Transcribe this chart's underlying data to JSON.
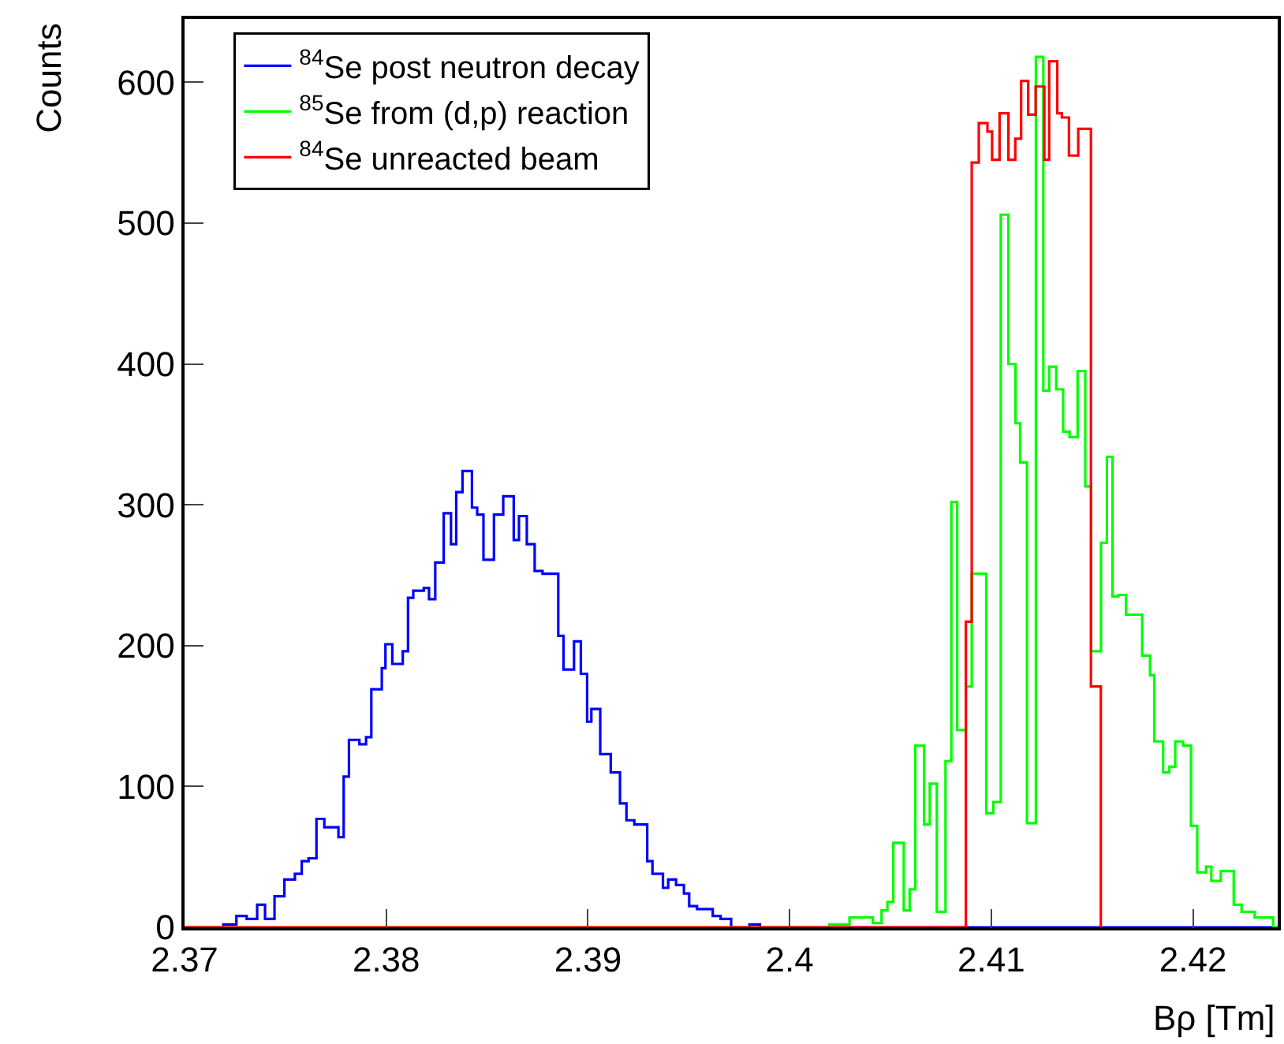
{
  "chart_data": {
    "type": "step",
    "xlabel": "Bρ [Tm]",
    "ylabel": "Counts",
    "xlim": [
      2.37,
      2.4242
    ],
    "xticks": [
      2.37,
      2.38,
      2.39,
      2.4,
      2.41,
      2.42
    ],
    "ylim": [
      0,
      645
    ],
    "yticks": [
      0,
      100,
      200,
      300,
      400,
      500,
      600
    ],
    "legend": "top left",
    "marker": "none",
    "line_style": "solid",
    "series": [
      {
        "name": "$^{84}$Se post neutron decay",
        "color": "#0000ff",
        "x": [
          2.37,
          2.37192,
          2.37257,
          2.37308,
          2.3736,
          2.37399,
          2.37446,
          2.37495,
          2.37547,
          2.37581,
          2.37615,
          2.37654,
          2.37693,
          2.37763,
          2.37789,
          2.37815,
          2.37867,
          2.379,
          2.37926,
          2.37978,
          2.37996,
          2.3803,
          2.38082,
          2.38108,
          2.38134,
          2.38186,
          2.38212,
          2.38243,
          2.38285,
          2.38321,
          2.38347,
          2.38378,
          2.38425,
          2.38451,
          2.38482,
          2.38534,
          2.3858,
          2.38632,
          2.38658,
          2.38697,
          2.38736,
          2.38775,
          2.38853,
          2.38879,
          2.38931,
          2.38965,
          2.38996,
          2.39017,
          2.39061,
          2.39113,
          2.39159,
          2.39191,
          2.3923,
          2.39294,
          2.3932,
          2.39372,
          2.39398,
          2.39437,
          2.39476,
          2.39502,
          2.39541,
          2.39619,
          2.39658,
          2.3971,
          2.39801,
          2.39853,
          2.4242
        ],
        "values": [
          0,
          2,
          8,
          6,
          16,
          6,
          22,
          34,
          38,
          47,
          49,
          77,
          71,
          64,
          107,
          133,
          130,
          135,
          169,
          184,
          201,
          187,
          196,
          234,
          239,
          241,
          233,
          259,
          294,
          272,
          309,
          324,
          298,
          293,
          261,
          293,
          306,
          275,
          292,
          272,
          253,
          251,
          207,
          183,
          203,
          180,
          146,
          155,
          123,
          110,
          88,
          76,
          73,
          47,
          38,
          28,
          34,
          30,
          24,
          15,
          13,
          8,
          6,
          0,
          2,
          0,
          0
        ]
      },
      {
        "name": "$^{85}$Se from (d,p) reaction",
        "color": "#00ff00",
        "x": [
          2.37,
          2.40196,
          2.40297,
          2.40413,
          2.40456,
          2.40485,
          2.40514,
          2.40566,
          2.40595,
          2.40623,
          2.40667,
          2.40695,
          2.4073,
          2.40773,
          2.40802,
          2.40831,
          2.40874,
          2.40903,
          2.40975,
          2.4101,
          2.41047,
          2.41085,
          2.4112,
          2.41143,
          2.41177,
          2.41221,
          2.41258,
          2.41287,
          2.41322,
          2.41356,
          2.41388,
          2.41428,
          2.41466,
          2.41495,
          2.41544,
          2.41573,
          2.41601,
          2.4163,
          2.41668,
          2.41748,
          2.41787,
          2.41808,
          2.41852,
          2.41883,
          2.41912,
          2.41951,
          2.4199,
          2.42021,
          2.42065,
          2.42091,
          2.42138,
          2.42202,
          2.42241,
          2.42306,
          2.42397,
          2.4242
        ],
        "values": [
          0,
          2,
          7,
          3,
          12,
          18,
          60,
          12,
          27,
          129,
          73,
          102,
          11,
          118,
          302,
          140,
          171,
          251,
          81,
          89,
          506,
          400,
          358,
          330,
          74,
          618,
          381,
          398,
          382,
          352,
          348,
          395,
          313,
          196,
          273,
          334,
          235,
          236,
          222,
          193,
          179,
          132,
          110,
          114,
          132,
          129,
          72,
          39,
          43,
          33,
          40,
          16,
          11,
          7,
          0,
          0
        ]
      },
      {
        "name": "$^{84}$Se unreacted beam",
        "color": "#ff0000",
        "x": [
          2.37,
          2.40874,
          2.40903,
          2.40938,
          2.40981,
          2.41004,
          2.41041,
          2.41085,
          2.41119,
          2.41148,
          2.41183,
          2.4122,
          2.41263,
          2.41287,
          2.41327,
          2.4135,
          2.41385,
          2.41431,
          2.41494,
          2.41543
        ],
        "values": [
          0,
          217,
          543,
          571,
          565,
          545,
          578,
          545,
          560,
          601,
          577,
          597,
          545,
          615,
          578,
          575,
          548,
          567,
          171,
          0
        ]
      }
    ]
  }
}
